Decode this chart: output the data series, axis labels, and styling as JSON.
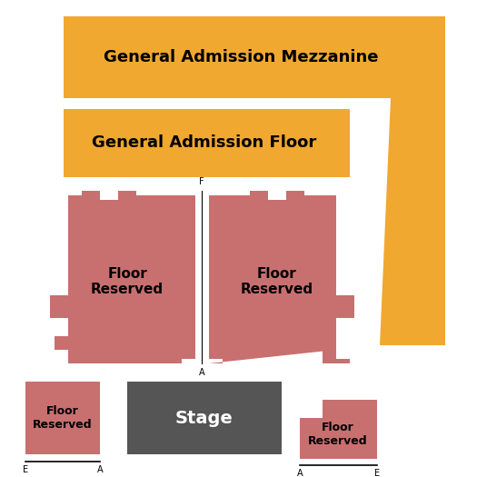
{
  "bg_color": "#ffffff",
  "orange_color": "#F0A830",
  "pink_color": "#C87070",
  "dark_gray": "#555555",
  "mezzanine_label": "General Admission Mezzanine",
  "floor_label": "General Admission Floor",
  "stage_label": "Stage",
  "floor_reserved_label": "Floor\nReserved",
  "mezzanine_fontsize": 13,
  "floor_fontsize": 13,
  "stage_fontsize": 14,
  "reserved_large_fontsize": 11,
  "reserved_small_fontsize": 9,
  "fa_fontsize": 7
}
